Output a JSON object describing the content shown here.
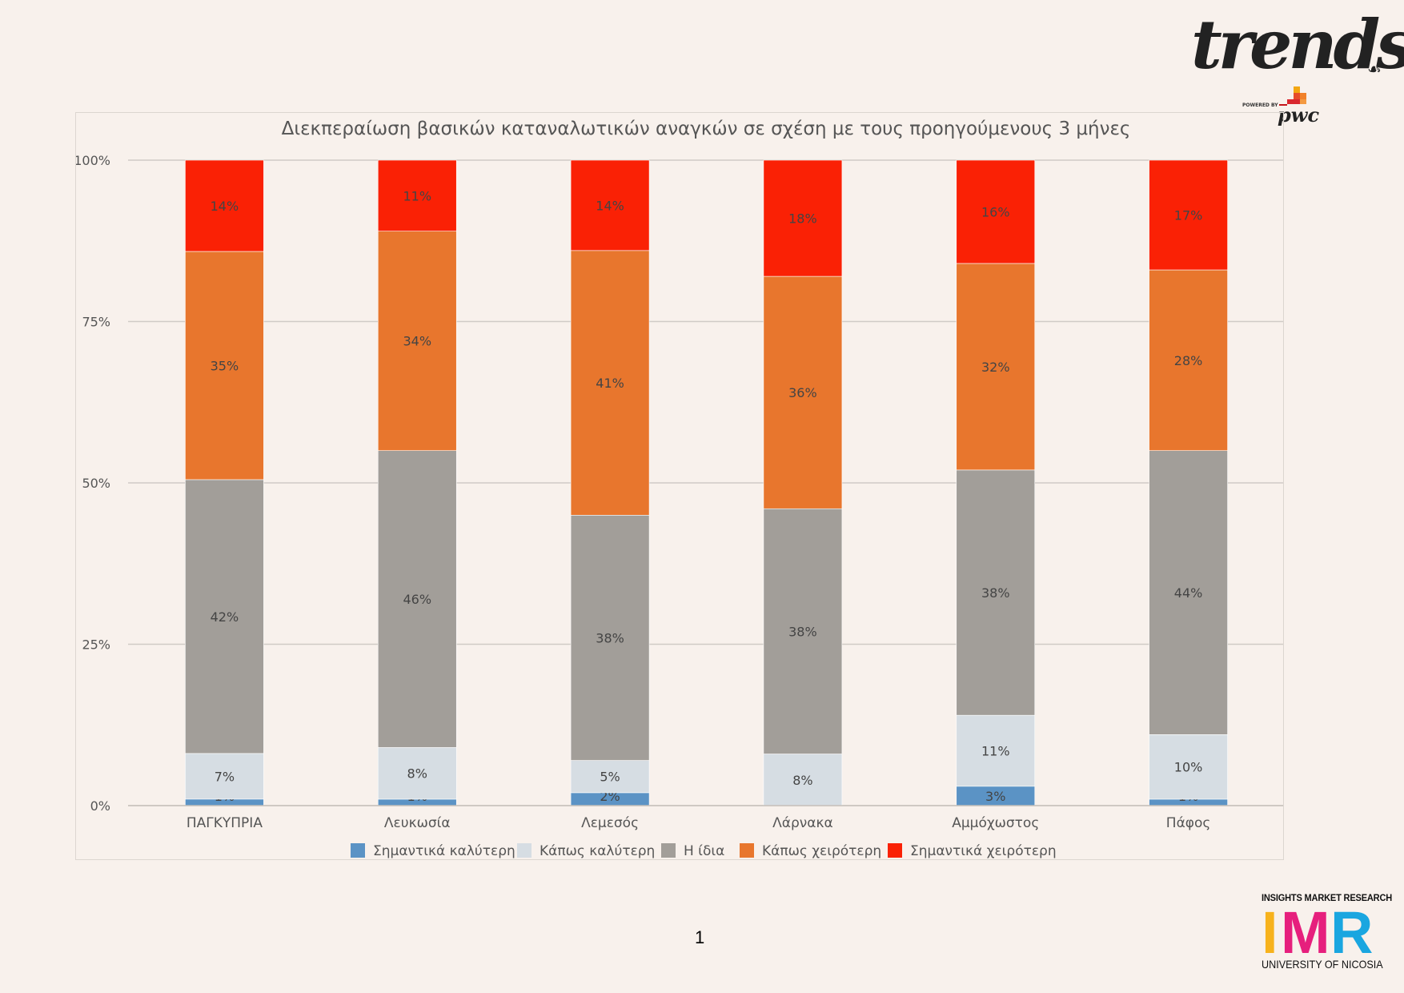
{
  "branding": {
    "trends_logo_text": "trends",
    "powered_by": "POWERED BY",
    "pwc_text": "pwc",
    "imr_top": "INSIGHTS MARKET RESEARCH",
    "imr_letters": [
      "I",
      "M",
      "R"
    ],
    "imr_bottom": "UNIVERSITY OF NICOSIA",
    "imr_colors": [
      "#f7b21c",
      "#e61f7d",
      "#1aa6e0"
    ]
  },
  "page_number": "1",
  "chart_data": {
    "type": "bar",
    "stacked": true,
    "normalized": true,
    "title": "Διεκπεραίωση βασικών καταναλωτικών αναγκών σε σχέση με τους προηγούμενους 3 μήνες",
    "categories": [
      "ΠΑΓΚΥΠΡΙΑ",
      "Λευκωσία",
      "Λεμεσός",
      "Λάρνακα",
      "Αμμόχωστος",
      "Πάφος"
    ],
    "yticks": [
      "0%",
      "25%",
      "50%",
      "75%",
      "100%"
    ],
    "ylim": [
      0,
      100
    ],
    "grid": true,
    "legend_position": "bottom",
    "series": [
      {
        "name": "Σημαντικά καλύτερη",
        "color": "#5b93c5",
        "values": [
          1,
          1,
          2,
          0,
          3,
          1
        ],
        "labels": [
          "1%",
          "1%",
          "2%",
          "",
          "3%",
          "1%"
        ]
      },
      {
        "name": "Κάπως καλύτερη",
        "color": "#d6dde3",
        "values": [
          7,
          8,
          5,
          8,
          11,
          10
        ],
        "labels": [
          "7%",
          "8%",
          "5%",
          "8%",
          "11%",
          "10%"
        ]
      },
      {
        "name": "Η ίδια",
        "color": "#a29e99",
        "values": [
          42,
          46,
          38,
          38,
          38,
          44
        ],
        "labels": [
          "42%",
          "46%",
          "38%",
          "38%",
          "38%",
          "44%"
        ]
      },
      {
        "name": "Κάπως χειρότερη",
        "color": "#e8762d",
        "values": [
          35,
          34,
          41,
          36,
          32,
          28
        ],
        "labels": [
          "35%",
          "34%",
          "41%",
          "36%",
          "32%",
          "28%"
        ]
      },
      {
        "name": "Σημαντικά χειρότερη",
        "color": "#fa2105",
        "values": [
          14,
          11,
          14,
          18,
          16,
          17
        ],
        "labels": [
          "14%",
          "11%",
          "14%",
          "18%",
          "16%",
          "17%"
        ]
      }
    ]
  }
}
